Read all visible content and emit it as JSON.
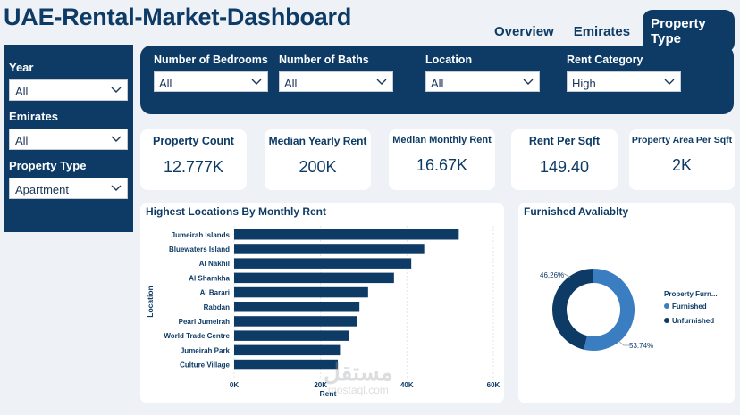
{
  "header": {
    "title": "UAE-Rental-Market-Dashboard",
    "nav": [
      "Overview",
      "Emirates",
      "Property Type"
    ],
    "active_index": 2
  },
  "sidebar": {
    "filters": [
      {
        "label": "Year",
        "value": "All"
      },
      {
        "label": "Emirates",
        "value": "All"
      },
      {
        "label": "Property Type",
        "value": "Apartment"
      }
    ]
  },
  "top_filters": [
    {
      "label": "Number of Bedrooms",
      "value": "All"
    },
    {
      "label": "Number of Baths",
      "value": "All"
    },
    {
      "label": "Location",
      "value": "All"
    },
    {
      "label": "Rent Category",
      "value": "High"
    }
  ],
  "kpis": [
    {
      "title": "Property Count",
      "value": "12.777K"
    },
    {
      "title": "Median Yearly Rent",
      "value": "200K"
    },
    {
      "title": "Median Monthly Rent",
      "value": "16.67K"
    },
    {
      "title": "Rent Per Sqft",
      "value": "149.40"
    },
    {
      "title": "Property Area Per Sqft",
      "value": "2K"
    }
  ],
  "colors": {
    "primary": "#0d3b66",
    "bar": "#0d3b66",
    "furnished": "#3a7dc0",
    "unfurnished": "#0d3b66"
  },
  "chart_data": [
    {
      "type": "bar",
      "orientation": "horizontal",
      "title": "Highest Locations By Monthly Rent",
      "xlabel": "Rent",
      "ylabel": "Location",
      "categories": [
        "Jumeirah Islands",
        "Bluewaters Island",
        "Al Nakhil",
        "Al Shamkha",
        "Al Barari",
        "Rabdan",
        "Pearl Jumeirah",
        "World Trade Centre",
        "Jumeirah Park",
        "Culture Village"
      ],
      "values": [
        52000,
        44000,
        41000,
        37000,
        31000,
        29000,
        28500,
        26500,
        24500,
        24000
      ],
      "xlim": [
        0,
        60000
      ],
      "xticks": [
        "0K",
        "20K",
        "40K",
        "60K"
      ],
      "grid": true
    },
    {
      "type": "pie",
      "donut": true,
      "title": "Furnished Avaliablty",
      "legend_title": "Property Furn...",
      "labels": [
        "Furnished",
        "Unfurnished"
      ],
      "values": [
        53.74,
        46.26
      ],
      "data_labels": [
        "53.74%",
        "46.26%"
      ],
      "legend_position": "right"
    }
  ],
  "watermark": {
    "arabic": "مستقل",
    "latin": "mostaql.com"
  }
}
